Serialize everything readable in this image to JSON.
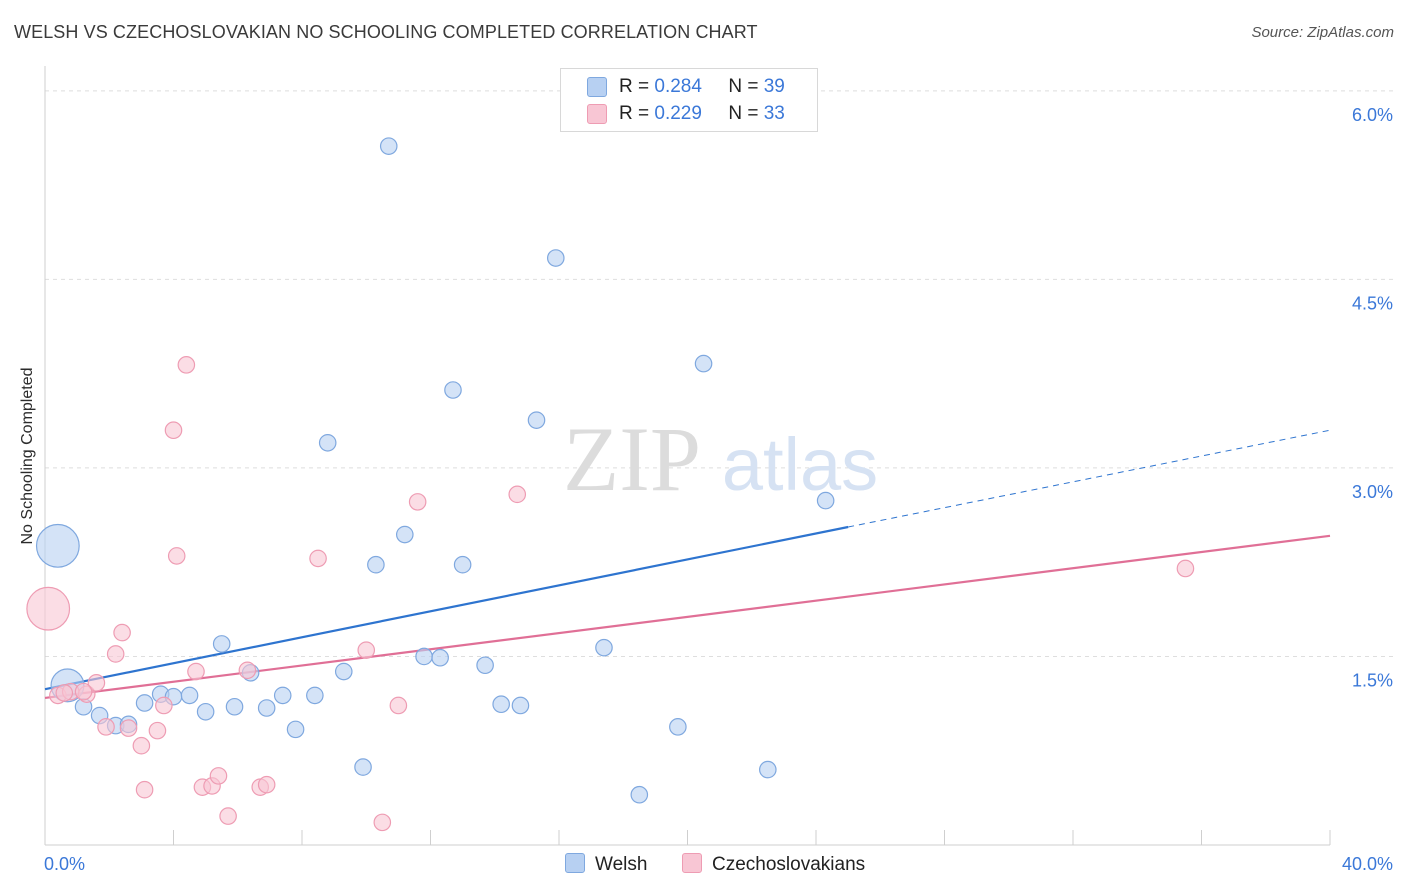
{
  "header": {
    "title": "WELSH VS CZECHOSLOVAKIAN NO SCHOOLING COMPLETED CORRELATION CHART",
    "source": "Source: ZipAtlas.com"
  },
  "watermark": {
    "zip": "ZIP",
    "atlas": "atlas"
  },
  "legend": {
    "items": [
      {
        "r_label": "R =",
        "r_value": "0.284",
        "n_label": "N =",
        "n_value": "39",
        "color": "#b7d0f2"
      },
      {
        "r_label": "R =",
        "r_value": "0.229",
        "n_label": "N =",
        "n_value": "33",
        "color": "#f8c6d4"
      }
    ]
  },
  "bottom_legend": [
    "Welsh",
    "Czechoslovakians"
  ],
  "chart_data": {
    "type": "scatter",
    "title": "WELSH VS CZECHOSLOVAKIAN NO SCHOOLING COMPLETED CORRELATION CHART",
    "xlabel": "",
    "ylabel": "No Schooling Completed",
    "xlim": [
      0,
      40
    ],
    "ylim": [
      0,
      6.15
    ],
    "x_tick_labels": [
      "0.0%",
      "40.0%"
    ],
    "y_ticks": [
      1.5,
      3.0,
      4.5,
      6.0
    ],
    "y_tick_labels": [
      "1.5%",
      "3.0%",
      "4.5%",
      "6.0%"
    ],
    "grid": true,
    "legend_position": "top-center",
    "series": [
      {
        "name": "Welsh",
        "color": "#b7d0f2",
        "stroke": "#7fa8df",
        "trend_color": "#2e74cf",
        "trend": {
          "x0": 0,
          "y0": 1.24,
          "x1": 25,
          "y1": 2.53,
          "dashed_to_x": 40,
          "dashed_to_y": 3.3
        },
        "points": [
          [
            0.4,
            2.38,
            26
          ],
          [
            0.7,
            1.27,
            20
          ],
          [
            1.2,
            1.1,
            10
          ],
          [
            1.7,
            1.03,
            10
          ],
          [
            2.2,
            0.95,
            10
          ],
          [
            2.6,
            0.96,
            10
          ],
          [
            3.1,
            1.13,
            10
          ],
          [
            3.6,
            1.2,
            10
          ],
          [
            4.0,
            1.18,
            10
          ],
          [
            4.5,
            1.19,
            10
          ],
          [
            5.0,
            1.06,
            10
          ],
          [
            5.5,
            1.6,
            10
          ],
          [
            5.9,
            1.1,
            10
          ],
          [
            6.4,
            1.37,
            10
          ],
          [
            6.9,
            1.09,
            10
          ],
          [
            7.4,
            1.19,
            10
          ],
          [
            7.8,
            0.92,
            10
          ],
          [
            8.4,
            1.19,
            10
          ],
          [
            8.8,
            3.2,
            10
          ],
          [
            9.3,
            1.38,
            10
          ],
          [
            9.9,
            0.62,
            10
          ],
          [
            10.3,
            2.23,
            10
          ],
          [
            10.7,
            5.56,
            10
          ],
          [
            11.2,
            2.47,
            10
          ],
          [
            11.8,
            1.5,
            10
          ],
          [
            12.3,
            1.49,
            10
          ],
          [
            12.7,
            3.62,
            10
          ],
          [
            13.0,
            2.23,
            10
          ],
          [
            13.7,
            1.43,
            10
          ],
          [
            14.2,
            1.12,
            10
          ],
          [
            14.8,
            1.11,
            10
          ],
          [
            15.3,
            3.38,
            10
          ],
          [
            15.9,
            4.67,
            10
          ],
          [
            17.4,
            1.57,
            10
          ],
          [
            18.5,
            0.4,
            10
          ],
          [
            19.7,
            0.94,
            10
          ],
          [
            20.5,
            3.83,
            10
          ],
          [
            22.5,
            0.6,
            10
          ],
          [
            24.3,
            2.74,
            10
          ]
        ]
      },
      {
        "name": "Czechoslovakians",
        "color": "#f8c6d4",
        "stroke": "#ee9cb3",
        "trend_color": "#e06f96",
        "trend": {
          "x0": 0,
          "y0": 1.17,
          "x1": 40,
          "y1": 2.46
        },
        "points": [
          [
            0.1,
            1.88,
            26
          ],
          [
            0.4,
            1.19,
            10
          ],
          [
            0.8,
            1.22,
            10
          ],
          [
            1.3,
            1.2,
            10
          ],
          [
            1.6,
            1.29,
            10
          ],
          [
            1.9,
            0.94,
            10
          ],
          [
            2.2,
            1.52,
            10
          ],
          [
            2.4,
            1.69,
            10
          ],
          [
            2.6,
            0.93,
            10
          ],
          [
            3.0,
            0.79,
            10
          ],
          [
            3.1,
            0.44,
            10
          ],
          [
            3.5,
            0.91,
            10
          ],
          [
            3.7,
            1.11,
            10
          ],
          [
            4.0,
            3.3,
            10
          ],
          [
            4.1,
            2.3,
            10
          ],
          [
            4.4,
            3.82,
            10
          ],
          [
            4.7,
            1.38,
            10
          ],
          [
            4.9,
            0.46,
            10
          ],
          [
            5.2,
            0.47,
            10
          ],
          [
            5.4,
            0.55,
            10
          ],
          [
            5.7,
            0.23,
            10
          ],
          [
            6.3,
            1.39,
            10
          ],
          [
            6.7,
            0.46,
            10
          ],
          [
            6.9,
            0.48,
            10
          ],
          [
            8.5,
            2.28,
            10
          ],
          [
            10.0,
            1.55,
            10
          ],
          [
            10.5,
            0.18,
            10
          ],
          [
            11.0,
            1.11,
            10
          ],
          [
            11.6,
            2.73,
            10
          ],
          [
            14.7,
            2.79,
            10
          ],
          [
            35.5,
            2.2,
            10
          ],
          [
            1.2,
            1.22,
            10
          ],
          [
            0.6,
            1.21,
            10
          ]
        ]
      }
    ]
  }
}
